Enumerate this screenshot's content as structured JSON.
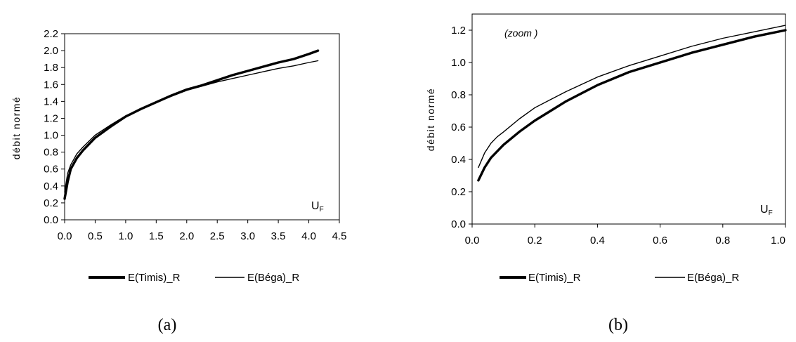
{
  "chart_data": [
    {
      "type": "line",
      "caption": "(a)",
      "ylabel": "débit normé",
      "xlabel_main": "U",
      "xlabel_sub": "F",
      "annotation": "",
      "xlim": [
        0,
        4.5
      ],
      "ylim": [
        0,
        2.2
      ],
      "xticks": [
        "0.0",
        "0.5",
        "1.0",
        "1.5",
        "2.0",
        "2.5",
        "3.0",
        "3.5",
        "4.0",
        "4.5"
      ],
      "yticks": [
        "0.0",
        "0.2",
        "0.4",
        "0.6",
        "0.8",
        "1.0",
        "1.2",
        "1.4",
        "1.6",
        "1.8",
        "2.0",
        "2.2"
      ],
      "grid": false,
      "legend_position": "bottom",
      "series": [
        {
          "name": "E(Timis)_R",
          "color": "#000000",
          "style": "thick",
          "x": [
            0.0,
            0.05,
            0.1,
            0.2,
            0.3,
            0.5,
            0.75,
            1.0,
            1.25,
            1.5,
            1.75,
            2.0,
            2.25,
            2.5,
            2.75,
            3.0,
            3.25,
            3.5,
            3.75,
            4.0,
            4.15
          ],
          "y": [
            0.25,
            0.45,
            0.6,
            0.73,
            0.82,
            0.97,
            1.1,
            1.22,
            1.31,
            1.39,
            1.47,
            1.54,
            1.59,
            1.65,
            1.71,
            1.76,
            1.81,
            1.86,
            1.9,
            1.96,
            2.0
          ]
        },
        {
          "name": "E(Béga)_R",
          "color": "#000000",
          "style": "thin",
          "x": [
            0.0,
            0.05,
            0.1,
            0.2,
            0.3,
            0.5,
            0.75,
            1.0,
            1.25,
            1.5,
            1.75,
            2.0,
            2.25,
            2.5,
            2.75,
            3.0,
            3.25,
            3.5,
            3.75,
            4.0,
            4.15
          ],
          "y": [
            0.33,
            0.55,
            0.65,
            0.78,
            0.86,
            1.0,
            1.12,
            1.23,
            1.31,
            1.39,
            1.46,
            1.53,
            1.58,
            1.63,
            1.67,
            1.71,
            1.75,
            1.79,
            1.82,
            1.86,
            1.88
          ]
        }
      ]
    },
    {
      "type": "line",
      "caption": "(b)",
      "ylabel": "débit normé",
      "xlabel_main": "U",
      "xlabel_sub": "F",
      "annotation": "(zoom )",
      "xlim": [
        0,
        1.0
      ],
      "ylim": [
        0,
        1.3
      ],
      "xticks": [
        "0.0",
        "0.2",
        "0.4",
        "0.6",
        "0.8",
        "1.0"
      ],
      "yticks": [
        "0.0",
        "0.2",
        "0.4",
        "0.6",
        "0.8",
        "1.0",
        "1.2"
      ],
      "grid": false,
      "legend_position": "bottom",
      "series": [
        {
          "name": "E(Timis)_R",
          "color": "#000000",
          "style": "thick",
          "x": [
            0.02,
            0.04,
            0.06,
            0.08,
            0.1,
            0.15,
            0.2,
            0.25,
            0.3,
            0.4,
            0.5,
            0.6,
            0.7,
            0.8,
            0.9,
            1.0
          ],
          "y": [
            0.27,
            0.35,
            0.41,
            0.45,
            0.49,
            0.57,
            0.64,
            0.7,
            0.76,
            0.86,
            0.94,
            1.0,
            1.06,
            1.11,
            1.16,
            1.2
          ]
        },
        {
          "name": "E(Béga)_R",
          "color": "#000000",
          "style": "thin",
          "x": [
            0.02,
            0.04,
            0.06,
            0.08,
            0.1,
            0.15,
            0.2,
            0.25,
            0.3,
            0.4,
            0.5,
            0.6,
            0.7,
            0.8,
            0.9,
            1.0
          ],
          "y": [
            0.35,
            0.44,
            0.5,
            0.54,
            0.57,
            0.65,
            0.72,
            0.77,
            0.82,
            0.91,
            0.98,
            1.04,
            1.1,
            1.15,
            1.19,
            1.23
          ]
        }
      ]
    }
  ]
}
